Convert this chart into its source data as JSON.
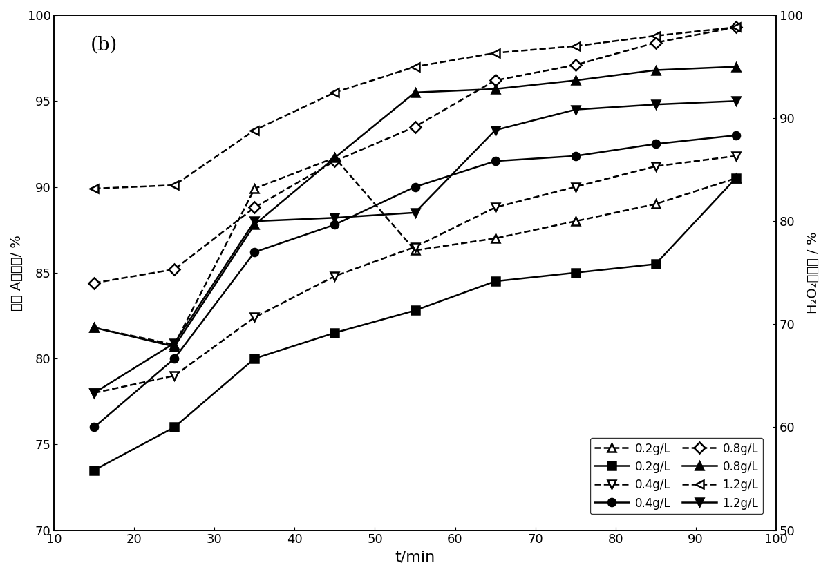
{
  "title_label": "(b)",
  "xlabel": "t/min",
  "ylabel_left": "双酚 A去除率/ %",
  "ylabel_right": "H₂O₂消耗率 / %",
  "xlim": [
    10,
    100
  ],
  "ylim_left": [
    70,
    100
  ],
  "ylim_right": [
    50,
    100
  ],
  "x": [
    15,
    25,
    35,
    45,
    55,
    65,
    75,
    85,
    95
  ],
  "dashed_lines": {
    "0.2g/L": [
      81.8,
      80.8,
      89.9,
      91.7,
      86.3,
      87.0,
      88.0,
      89.0,
      90.5
    ],
    "0.4g/L": [
      78.0,
      79.0,
      82.4,
      84.8,
      86.5,
      88.8,
      90.0,
      91.2,
      91.8
    ],
    "0.8g/L": [
      84.4,
      85.2,
      88.8,
      91.5,
      93.5,
      96.2,
      97.1,
      98.4,
      99.3
    ],
    "1.2g/L": [
      89.9,
      90.1,
      93.3,
      95.5,
      97.0,
      97.8,
      98.2,
      98.8,
      99.3
    ]
  },
  "solid_lines": {
    "0.2g/L": [
      73.5,
      76.0,
      80.0,
      81.5,
      82.8,
      84.5,
      85.0,
      85.5,
      90.5
    ],
    "0.4g/L": [
      76.0,
      80.0,
      86.2,
      87.8,
      90.0,
      91.5,
      91.8,
      92.5,
      93.0
    ],
    "0.8g/L": [
      81.8,
      80.7,
      87.8,
      91.7,
      95.5,
      95.7,
      96.2,
      96.8,
      97.0
    ],
    "1.2g/L": [
      78.0,
      80.9,
      88.0,
      88.2,
      88.5,
      93.3,
      94.5,
      94.8,
      95.0
    ]
  },
  "dashed_markers": [
    "^",
    "v",
    "D",
    "<"
  ],
  "solid_markers": [
    "s",
    "o",
    "^",
    "v"
  ],
  "legend_labels": [
    "0.2g/L",
    "0.4g/L",
    "0.8g/L",
    "1.2g/L"
  ],
  "xticks": [
    10,
    20,
    30,
    40,
    50,
    60,
    70,
    80,
    90,
    100
  ],
  "yticks_left": [
    70,
    75,
    80,
    85,
    90,
    95,
    100
  ],
  "yticks_right": [
    50,
    60,
    70,
    80,
    90,
    100
  ]
}
